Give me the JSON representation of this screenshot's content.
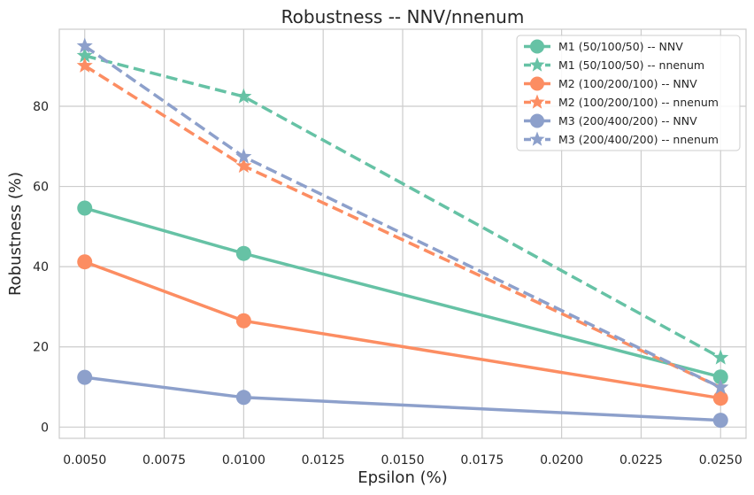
{
  "chart_data": {
    "type": "line",
    "title": "Robustness -- NNV/nnenum",
    "xlabel": "Epsilon (%)",
    "ylabel": "Robustness (%)",
    "x": [
      0.005,
      0.01,
      0.025
    ],
    "xlim": [
      0.0042,
      0.0258
    ],
    "ylim": [
      -2.8,
      99.2
    ],
    "xticks": [
      "0.0050",
      "0.0075",
      "0.0100",
      "0.0125",
      "0.0150",
      "0.0175",
      "0.0200",
      "0.0225",
      "0.0250"
    ],
    "xtick_values": [
      0.005,
      0.0075,
      0.01,
      0.0125,
      0.015,
      0.0175,
      0.02,
      0.0225,
      0.025
    ],
    "yticks": [
      "0",
      "20",
      "40",
      "60",
      "80"
    ],
    "ytick_values": [
      0,
      20,
      40,
      60,
      80
    ],
    "grid": true,
    "legend_position": "top-right",
    "series": [
      {
        "name": "M1 (50/100/50) -- NNV",
        "color": "#66c2a5",
        "style": "solid",
        "marker": "circle",
        "values": [
          54.6,
          43.3,
          12.5
        ]
      },
      {
        "name": "M1 (50/100/50) -- nnenum",
        "color": "#66c2a5",
        "style": "dashed",
        "marker": "star",
        "values": [
          92.6,
          82.4,
          17.3
        ]
      },
      {
        "name": "M2 (100/200/100) -- NNV",
        "color": "#fc8d62",
        "style": "solid",
        "marker": "circle",
        "values": [
          41.2,
          26.5,
          7.2
        ]
      },
      {
        "name": "M2 (100/200/100) -- nnenum",
        "color": "#fc8d62",
        "style": "dashed",
        "marker": "star",
        "values": [
          90.1,
          65.1,
          9.9
        ]
      },
      {
        "name": "M3 (200/400/200) -- NNV",
        "color": "#8da0cb",
        "style": "solid",
        "marker": "circle",
        "values": [
          12.4,
          7.4,
          1.7
        ]
      },
      {
        "name": "M3 (200/400/200) -- nnenum",
        "color": "#8da0cb",
        "style": "dashed",
        "marker": "star",
        "values": [
          95.0,
          67.4,
          9.9
        ]
      }
    ]
  }
}
